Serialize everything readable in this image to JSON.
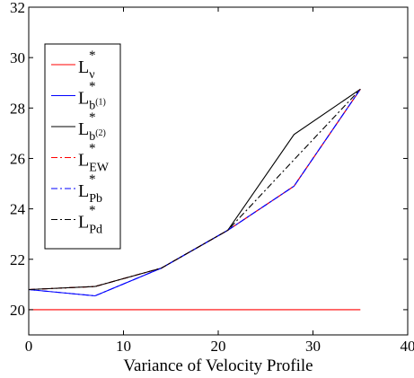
{
  "chart_data": {
    "type": "line",
    "title": "",
    "xlabel": "Variance of Velocity Profile",
    "ylabel": "",
    "xlim": [
      0,
      40
    ],
    "ylim": [
      19,
      32
    ],
    "xticks": [
      0,
      10,
      20,
      30,
      40
    ],
    "yticks": [
      20,
      22,
      24,
      26,
      28,
      30,
      32
    ],
    "grid": false,
    "legend_position": "left",
    "series": [
      {
        "name": "L*_v",
        "label": {
          "base": "L",
          "sup": "*",
          "sub": "ν"
        },
        "color": "#ff0000",
        "style": "solid",
        "x": [
          0,
          35
        ],
        "y": [
          20,
          20
        ]
      },
      {
        "name": "L*_b(1)",
        "label": {
          "base": "L",
          "sup": "*",
          "sub": "b",
          "subsup": "(1)"
        },
        "color": "#0000ff",
        "style": "solid",
        "x": [
          0,
          7,
          14,
          21,
          28,
          35
        ],
        "y": [
          20.8,
          20.55,
          21.65,
          23.15,
          24.9,
          28.75
        ]
      },
      {
        "name": "L*_b(2)",
        "label": {
          "base": "L",
          "sup": "*",
          "sub": "b",
          "subsup": "(2)"
        },
        "color": "#000000",
        "style": "solid",
        "x": [
          0,
          7,
          14,
          21,
          28,
          35
        ],
        "y": [
          20.8,
          20.92,
          21.65,
          23.15,
          26.95,
          28.75
        ]
      },
      {
        "name": "L*_EW",
        "label": {
          "base": "L",
          "sup": "*",
          "sub": "EW"
        },
        "color": "#ff0000",
        "style": "dashdot",
        "x": [
          0,
          7,
          14,
          21,
          28,
          35
        ],
        "y": [
          20.8,
          20.92,
          21.65,
          23.15,
          24.9,
          28.75
        ]
      },
      {
        "name": "L*_Pb",
        "label": {
          "base": "L",
          "sup": "*",
          "sub": "Pb"
        },
        "color": "#0000ff",
        "style": "dashdot",
        "x": [
          0,
          7,
          14,
          21,
          28,
          35
        ],
        "y": [
          20.8,
          20.55,
          21.65,
          23.15,
          24.9,
          28.75
        ]
      },
      {
        "name": "L*_Pd",
        "label": {
          "base": "L",
          "sup": "*",
          "sub": "Pd"
        },
        "color": "#000000",
        "style": "dashdot",
        "x": [
          0,
          7,
          14,
          21,
          28,
          35
        ],
        "y": [
          20.8,
          20.92,
          21.65,
          23.15,
          25.95,
          28.75
        ]
      }
    ]
  }
}
